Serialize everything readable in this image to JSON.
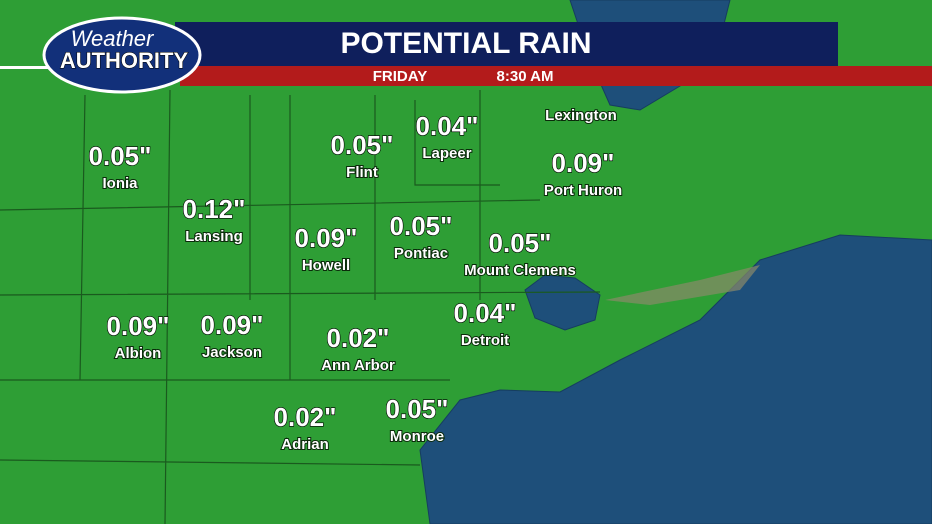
{
  "header": {
    "logo_top": "Weather",
    "logo_bottom": "AUTHORITY",
    "title": "POTENTIAL RAIN",
    "day": "FRIDAY",
    "time": "8:30 AM"
  },
  "cities": [
    {
      "name": "Lexington"
    },
    {
      "name": "Ionia",
      "value": "0.05\""
    },
    {
      "name": "Lansing",
      "value": "0.12\""
    },
    {
      "name": "Flint",
      "value": "0.05\""
    },
    {
      "name": "Lapeer",
      "value": "0.04\""
    },
    {
      "name": "Port Huron",
      "value": "0.09\""
    },
    {
      "name": "Howell",
      "value": "0.09\""
    },
    {
      "name": "Pontiac",
      "value": "0.05\""
    },
    {
      "name": "Mount Clemens",
      "value": "0.05\""
    },
    {
      "name": "Albion",
      "value": "0.09\""
    },
    {
      "name": "Jackson",
      "value": "0.09\""
    },
    {
      "name": "Ann Arbor",
      "value": "0.02\""
    },
    {
      "name": "Detroit",
      "value": "0.04\""
    },
    {
      "name": "Adrian",
      "value": "0.02\""
    },
    {
      "name": "Monroe",
      "value": "0.05\""
    }
  ]
}
